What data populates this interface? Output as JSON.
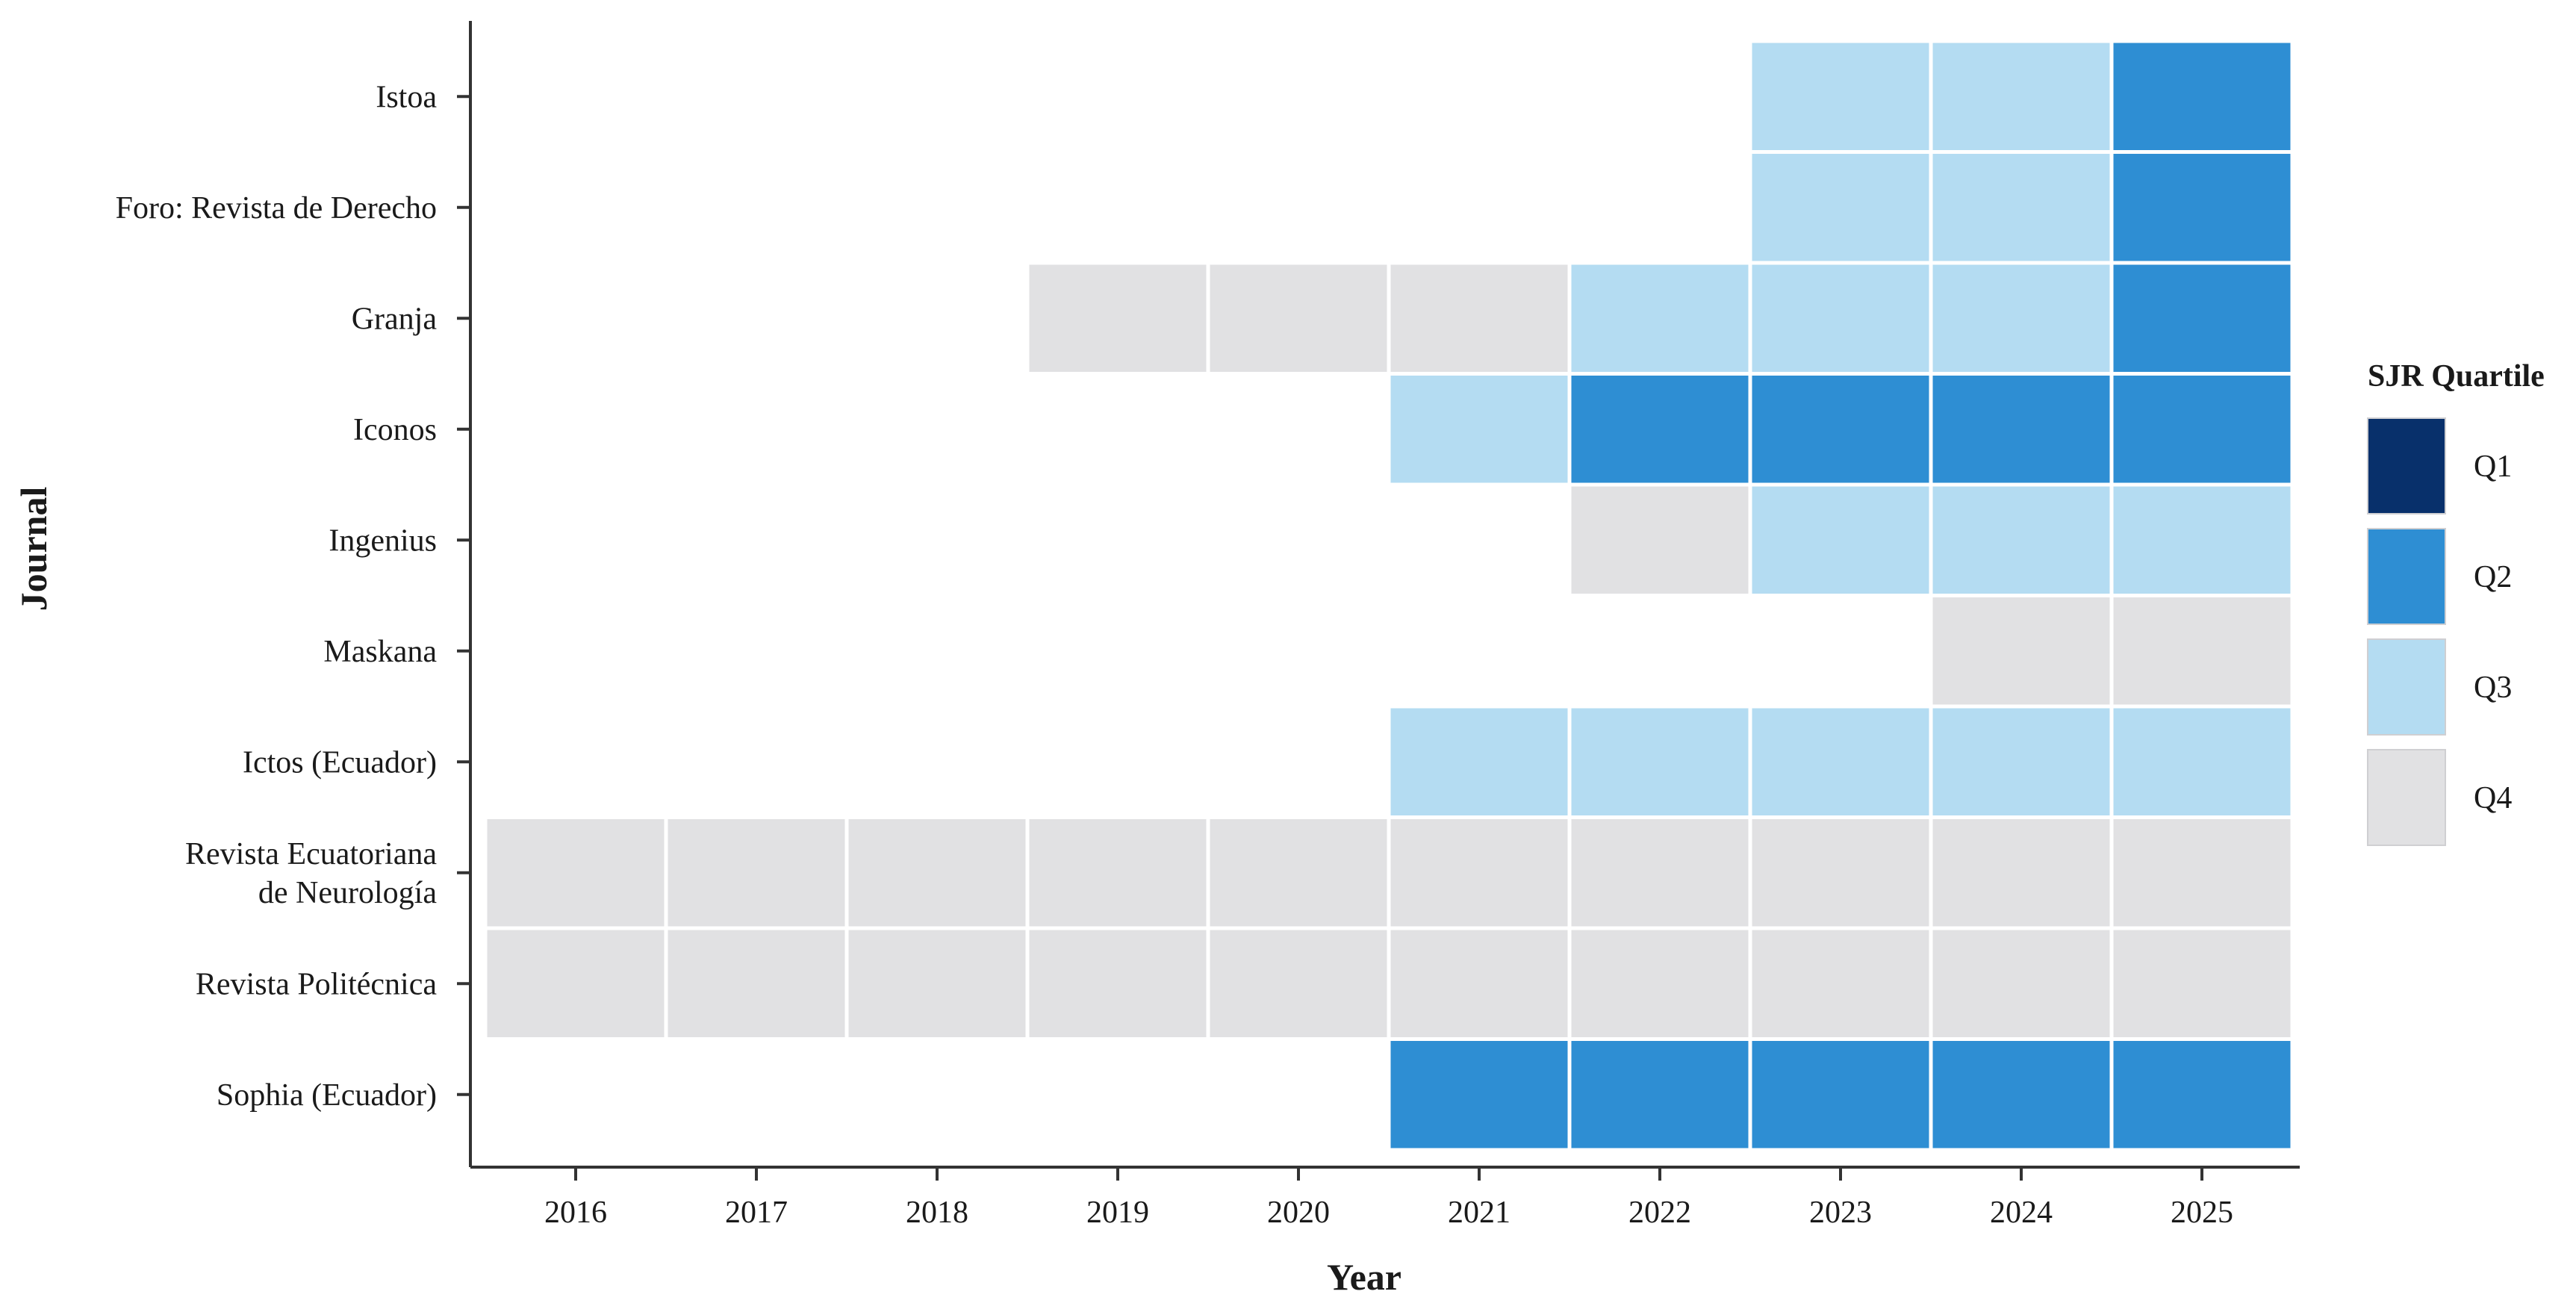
{
  "chart_data": {
    "type": "heatmap",
    "xlabel": "Year",
    "ylabel": "Journal",
    "x_categories": [
      "2016",
      "2017",
      "2018",
      "2019",
      "2020",
      "2021",
      "2022",
      "2023",
      "2024",
      "2025"
    ],
    "y_categories": [
      "Istoa",
      "Foro: Revista de Derecho",
      "Granja",
      "Iconos",
      "Ingenius",
      "Maskana",
      "Ictos (Ecuador)",
      "Revista Ecuatoriana de Neurología",
      "Revista Politécnica",
      "Sophia (Ecuador)"
    ],
    "y_label_lines": [
      [
        "Istoa"
      ],
      [
        "Foro: Revista de Derecho"
      ],
      [
        "Granja"
      ],
      [
        "Iconos"
      ],
      [
        "Ingenius"
      ],
      [
        "Maskana"
      ],
      [
        "Ictos (Ecuador)"
      ],
      [
        "Revista Ecuatoriana",
        "de Neurología"
      ],
      [
        "Revista Politécnica"
      ],
      [
        "Sophia (Ecuador)"
      ]
    ],
    "values": [
      [
        null,
        null,
        null,
        null,
        null,
        null,
        null,
        "Q3",
        "Q3",
        "Q2"
      ],
      [
        null,
        null,
        null,
        null,
        null,
        null,
        null,
        "Q3",
        "Q3",
        "Q2"
      ],
      [
        null,
        null,
        null,
        "Q4",
        "Q4",
        "Q4",
        "Q3",
        "Q3",
        "Q3",
        "Q2"
      ],
      [
        null,
        null,
        null,
        null,
        null,
        "Q3",
        "Q2",
        "Q2",
        "Q2",
        "Q2"
      ],
      [
        null,
        null,
        null,
        null,
        null,
        null,
        "Q4",
        "Q3",
        "Q3",
        "Q3"
      ],
      [
        null,
        null,
        null,
        null,
        null,
        null,
        null,
        null,
        "Q4",
        "Q4"
      ],
      [
        null,
        null,
        null,
        null,
        null,
        "Q3",
        "Q3",
        "Q3",
        "Q3",
        "Q3"
      ],
      [
        "Q4",
        "Q4",
        "Q4",
        "Q4",
        "Q4",
        "Q4",
        "Q4",
        "Q4",
        "Q4",
        "Q4"
      ],
      [
        "Q4",
        "Q4",
        "Q4",
        "Q4",
        "Q4",
        "Q4",
        "Q4",
        "Q4",
        "Q4",
        "Q4"
      ],
      [
        null,
        null,
        null,
        null,
        null,
        "Q2",
        "Q2",
        "Q2",
        "Q2",
        "Q2"
      ]
    ],
    "legend": {
      "title": "SJR Quartile",
      "placement": "right",
      "entries": [
        {
          "label": "Q1",
          "color": "#08306b"
        },
        {
          "label": "Q2",
          "color": "#2e8ed3"
        },
        {
          "label": "Q3",
          "color": "#b4dcf2"
        },
        {
          "label": "Q4",
          "color": "#e1e1e3"
        }
      ]
    },
    "grid": false,
    "cell_border_color": "#ffffff",
    "axis_color": "#333333"
  }
}
